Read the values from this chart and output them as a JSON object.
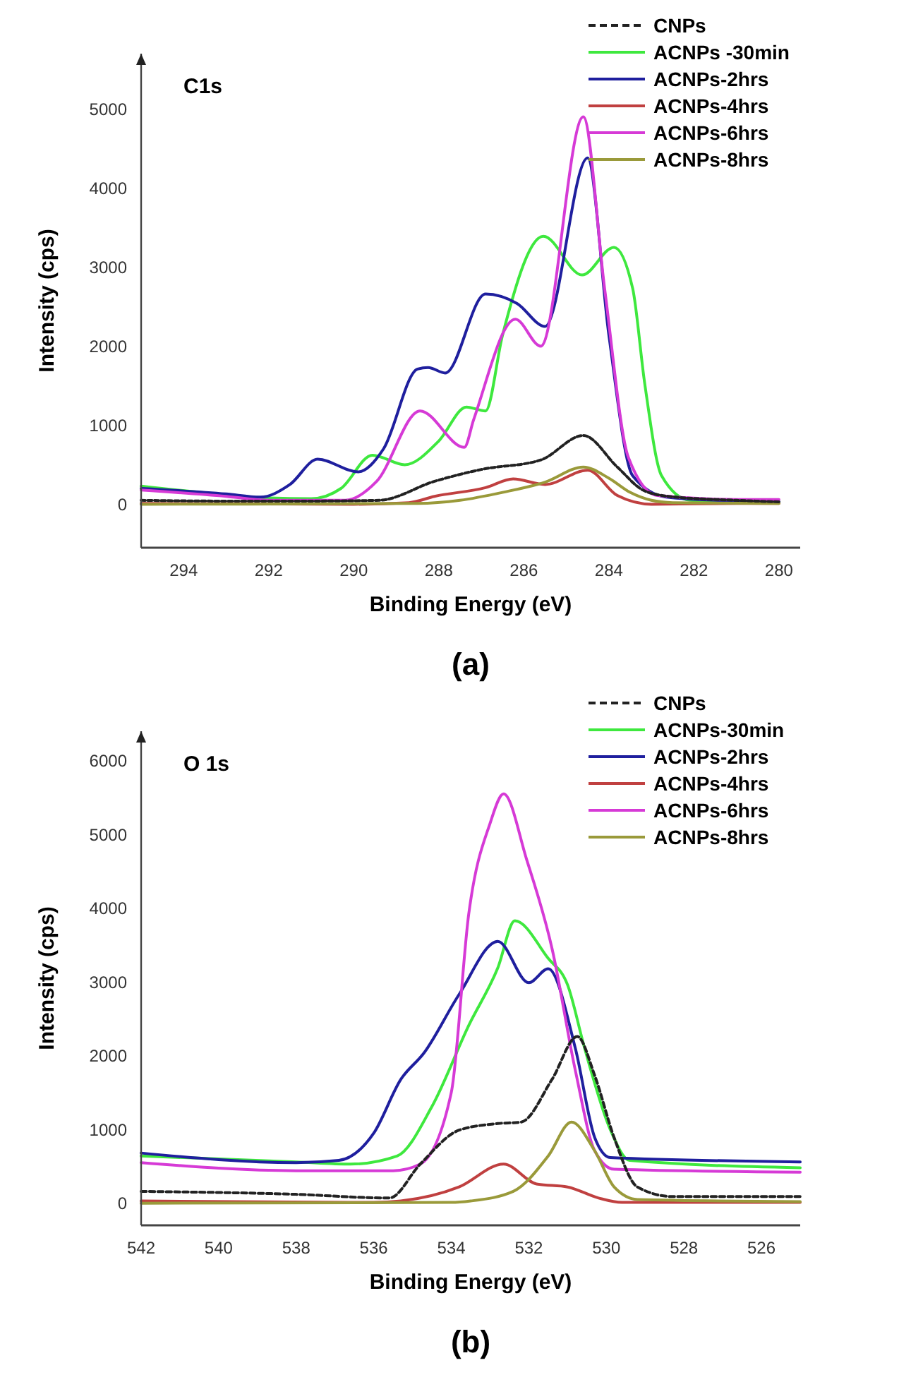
{
  "chart_data": [
    {
      "type": "line",
      "title": "C1s",
      "xlabel": "Binding Energy (eV)",
      "ylabel": "Intensity (cps)",
      "annotations": [
        "(a)"
      ],
      "xlim": [
        295,
        279.5
      ],
      "ylim": [
        -550,
        5700
      ],
      "xticks": [
        294,
        292,
        290,
        288,
        286,
        284,
        282,
        280
      ],
      "yticks": [
        0,
        1000,
        2000,
        3000,
        4000,
        5000
      ],
      "grid": false,
      "legend": "top right",
      "series": [
        {
          "name": "CNPs",
          "color": "#222222",
          "line_style": "dashed",
          "x": [
            295,
            293,
            291,
            289.4,
            288.1,
            287,
            285.6,
            284.6,
            283.8,
            283.2,
            282.6,
            281,
            280
          ],
          "values": [
            50,
            40,
            40,
            50,
            290,
            440,
            560,
            870,
            470,
            180,
            100,
            50,
            30
          ]
        },
        {
          "name": "ACNPs -30min",
          "color": "#3ee83e",
          "x": [
            295,
            293,
            292,
            291,
            290.3,
            289.56,
            288.8,
            288,
            287.35,
            286.9,
            286.5,
            285.54,
            284.63,
            283.88,
            283.44,
            283.16,
            282.76,
            282.1,
            281,
            280
          ],
          "values": [
            230,
            120,
            80,
            70,
            200,
            620,
            500,
            800,
            1230,
            1180,
            2140,
            3390,
            2900,
            3250,
            2730,
            1540,
            360,
            50,
            30,
            30
          ]
        },
        {
          "name": "ACNPs-2hrs",
          "color": "#1f1f9e",
          "x": [
            295,
            293,
            292.2,
            291.5,
            290.85,
            289.9,
            289.3,
            288.5,
            288.25,
            287.85,
            286.9,
            286.16,
            285.5,
            284.5,
            284,
            283.44,
            282.65,
            281,
            280
          ],
          "values": [
            200,
            130,
            90,
            250,
            570,
            410,
            700,
            1710,
            1730,
            1660,
            2660,
            2540,
            2250,
            4380,
            2140,
            360,
            90,
            40,
            30
          ]
        },
        {
          "name": "ACNPs-4hrs",
          "color": "#c04040",
          "x": [
            295,
            290,
            288.7,
            288.1,
            286.9,
            286.25,
            285.5,
            284.5,
            283.8,
            283,
            281,
            280
          ],
          "values": [
            10,
            0,
            20,
            100,
            210,
            320,
            250,
            430,
            110,
            0,
            10,
            10
          ]
        },
        {
          "name": "ACNPs-6hrs",
          "color": "#d63ad6",
          "x": [
            295,
            293,
            292,
            290.2,
            289.46,
            288.44,
            287.4,
            287.18,
            286.2,
            285.6,
            284.6,
            284.1,
            283.54,
            282.86,
            281,
            280
          ],
          "values": [
            180,
            100,
            50,
            50,
            290,
            1180,
            720,
            1070,
            2340,
            2000,
            4900,
            2730,
            590,
            110,
            60,
            60
          ]
        },
        {
          "name": "ACNPs-8hrs",
          "color": "#9a9a3a",
          "x": [
            295,
            288.5,
            287.5,
            286.5,
            285.5,
            284.6,
            284,
            283.5,
            283,
            282.5,
            280
          ],
          "values": [
            0,
            10,
            50,
            150,
            280,
            470,
            330,
            150,
            50,
            20,
            10
          ]
        }
      ]
    },
    {
      "type": "line",
      "title": "O 1s",
      "xlabel": "Binding Energy (eV)",
      "ylabel": "Intensity (cps)",
      "annotations": [
        "(b)"
      ],
      "xlim": [
        542,
        525
      ],
      "ylim": [
        -300,
        6400
      ],
      "xticks": [
        542,
        540,
        538,
        536,
        534,
        532,
        530,
        528,
        526
      ],
      "yticks": [
        0,
        1000,
        2000,
        3000,
        4000,
        5000,
        6000
      ],
      "grid": false,
      "legend": "top right",
      "series": [
        {
          "name": "CNPs",
          "color": "#222222",
          "line_style": "dashed",
          "x": [
            542,
            538,
            535.6,
            534.8,
            533.8,
            532.8,
            532.2,
            531.4,
            530.75,
            530.3,
            529.8,
            529.2,
            528.3,
            525
          ],
          "values": [
            160,
            120,
            70,
            530,
            990,
            1080,
            1100,
            1680,
            2260,
            1730,
            890,
            220,
            90,
            90
          ]
        },
        {
          "name": "ACNPs-30min",
          "color": "#3ee83e",
          "x": [
            542,
            538,
            536.6,
            535.4,
            534.5,
            533.55,
            532.8,
            532.36,
            531.5,
            531,
            530.56,
            529.9,
            529.4,
            525
          ],
          "values": [
            640,
            560,
            530,
            640,
            1310,
            2410,
            3190,
            3830,
            3320,
            2960,
            2100,
            1000,
            580,
            480
          ]
        },
        {
          "name": "ACNPs-2hrs",
          "color": "#1f1f9e",
          "x": [
            542,
            538,
            536.9,
            536,
            535.3,
            534.7,
            533.8,
            532.8,
            532,
            531.5,
            530.8,
            530.3,
            529.9,
            525
          ],
          "values": [
            680,
            550,
            580,
            950,
            1680,
            2040,
            2830,
            3550,
            2990,
            3180,
            2100,
            890,
            620,
            560
          ]
        },
        {
          "name": "ACNPs-4hrs",
          "color": "#c04040",
          "x": [
            542,
            536,
            535.3,
            533.8,
            532.65,
            531.8,
            531,
            530.2,
            529.6,
            525
          ],
          "values": [
            30,
            10,
            30,
            220,
            530,
            260,
            220,
            70,
            10,
            10
          ]
        },
        {
          "name": "ACNPs-6hrs",
          "color": "#d63ad6",
          "x": [
            542,
            538,
            535.5,
            534.8,
            534,
            533.55,
            533,
            532.65,
            532.05,
            531.4,
            530.8,
            530.3,
            529.8,
            525
          ],
          "values": [
            550,
            440,
            440,
            530,
            1500,
            3920,
            5150,
            5550,
            4650,
            3450,
            1800,
            710,
            460,
            420
          ]
        },
        {
          "name": "ACNPs-8hrs",
          "color": "#9a9a3a",
          "x": [
            542,
            534,
            533.5,
            532.4,
            531.5,
            530.9,
            530.3,
            529.8,
            529.2,
            525
          ],
          "values": [
            0,
            10,
            30,
            160,
            640,
            1100,
            710,
            220,
            50,
            20
          ]
        }
      ]
    }
  ]
}
